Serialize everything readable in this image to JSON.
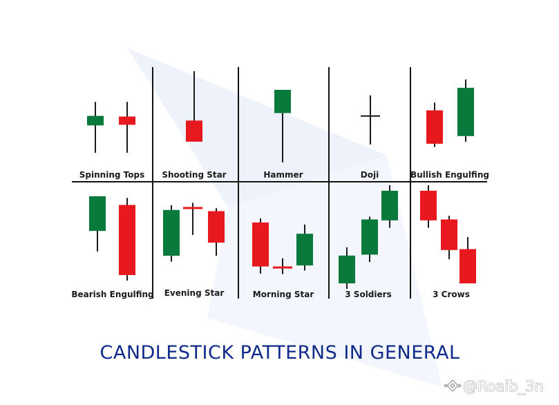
{
  "colors": {
    "bullish": "#0a7a3c",
    "bearish": "#e8181f",
    "wick": "#1a1a1a",
    "grid": "#111111",
    "title": "#0f2a8a"
  },
  "title": "CANDLESTICK PATTERNS IN GENERAL",
  "watermark": "@Roaib_3n",
  "watermark_icon": "binance-diamond-icon",
  "patterns": [
    {
      "id": "spinning-tops",
      "label": "Spinning Tops",
      "candles": [
        {
          "dir": "bull",
          "high": 80,
          "open": 43,
          "close": 58,
          "low": 0
        },
        {
          "dir": "bear",
          "high": 80,
          "open": 57,
          "close": 44,
          "low": 0
        }
      ]
    },
    {
      "id": "shooting-star",
      "label": "Shooting Star",
      "candles": [
        {
          "dir": "bear",
          "high": 100,
          "open": 30,
          "close": 0,
          "low": 0
        }
      ]
    },
    {
      "id": "hammer",
      "label": "Hammer",
      "candles": [
        {
          "dir": "bull",
          "high": 100,
          "open": 68,
          "close": 100,
          "low": 0
        }
      ]
    },
    {
      "id": "doji",
      "label": "Doji",
      "candles": [
        {
          "dir": "doji",
          "high": 100,
          "open": 58,
          "close": 58,
          "low": 0
        }
      ]
    },
    {
      "id": "bullish-engulfing",
      "label": "Bullish Engulfing",
      "candles": [
        {
          "dir": "bear",
          "high": 64,
          "open": 52,
          "close": 0,
          "low": -5
        },
        {
          "dir": "bull",
          "high": 100,
          "open": 12,
          "close": 87,
          "low": 3
        }
      ]
    },
    {
      "id": "bearish-engulfing",
      "label": "Bearish Engulfing",
      "candles": [
        {
          "dir": "bull",
          "high": 100,
          "open": 56,
          "close": 100,
          "low": 30
        },
        {
          "dir": "bear",
          "high": 98,
          "open": 89,
          "close": 0,
          "low": -7
        }
      ]
    },
    {
      "id": "evening-star",
      "label": "Evening Star",
      "candles": [
        {
          "dir": "bull",
          "high": 85,
          "open": 0,
          "close": 77,
          "low": -10
        },
        {
          "dir": "bear",
          "high": 89,
          "open": 82,
          "close": 80,
          "low": 35
        },
        {
          "dir": "bear",
          "high": 80,
          "open": 75,
          "close": 22,
          "low": 0
        }
      ]
    },
    {
      "id": "morning-star",
      "label": "Morning Star",
      "candles": [
        {
          "dir": "bear",
          "high": 100,
          "open": 92,
          "close": 6,
          "low": -8
        },
        {
          "dir": "bear",
          "high": 22,
          "open": 6,
          "close": 4,
          "low": -9
        },
        {
          "dir": "bull",
          "high": 88,
          "open": 8,
          "close": 70,
          "low": -2
        }
      ]
    },
    {
      "id": "3-soldiers",
      "label": "3 Soldiers",
      "candles": [
        {
          "dir": "bull",
          "high": 39,
          "open": 0,
          "close": 30,
          "low": -6
        },
        {
          "dir": "bull",
          "high": 72,
          "open": 31,
          "close": 69,
          "low": 23
        },
        {
          "dir": "bull",
          "high": 106,
          "open": 68,
          "close": 100,
          "low": 60
        }
      ]
    },
    {
      "id": "3-crows",
      "label": "3 Crows",
      "candles": [
        {
          "dir": "bear",
          "high": 106,
          "open": 100,
          "close": 68,
          "low": 60
        },
        {
          "dir": "bear",
          "high": 73,
          "open": 69,
          "close": 36,
          "low": 26
        },
        {
          "dir": "bear",
          "high": 50,
          "open": 37,
          "close": 0,
          "low": 0
        }
      ]
    }
  ]
}
